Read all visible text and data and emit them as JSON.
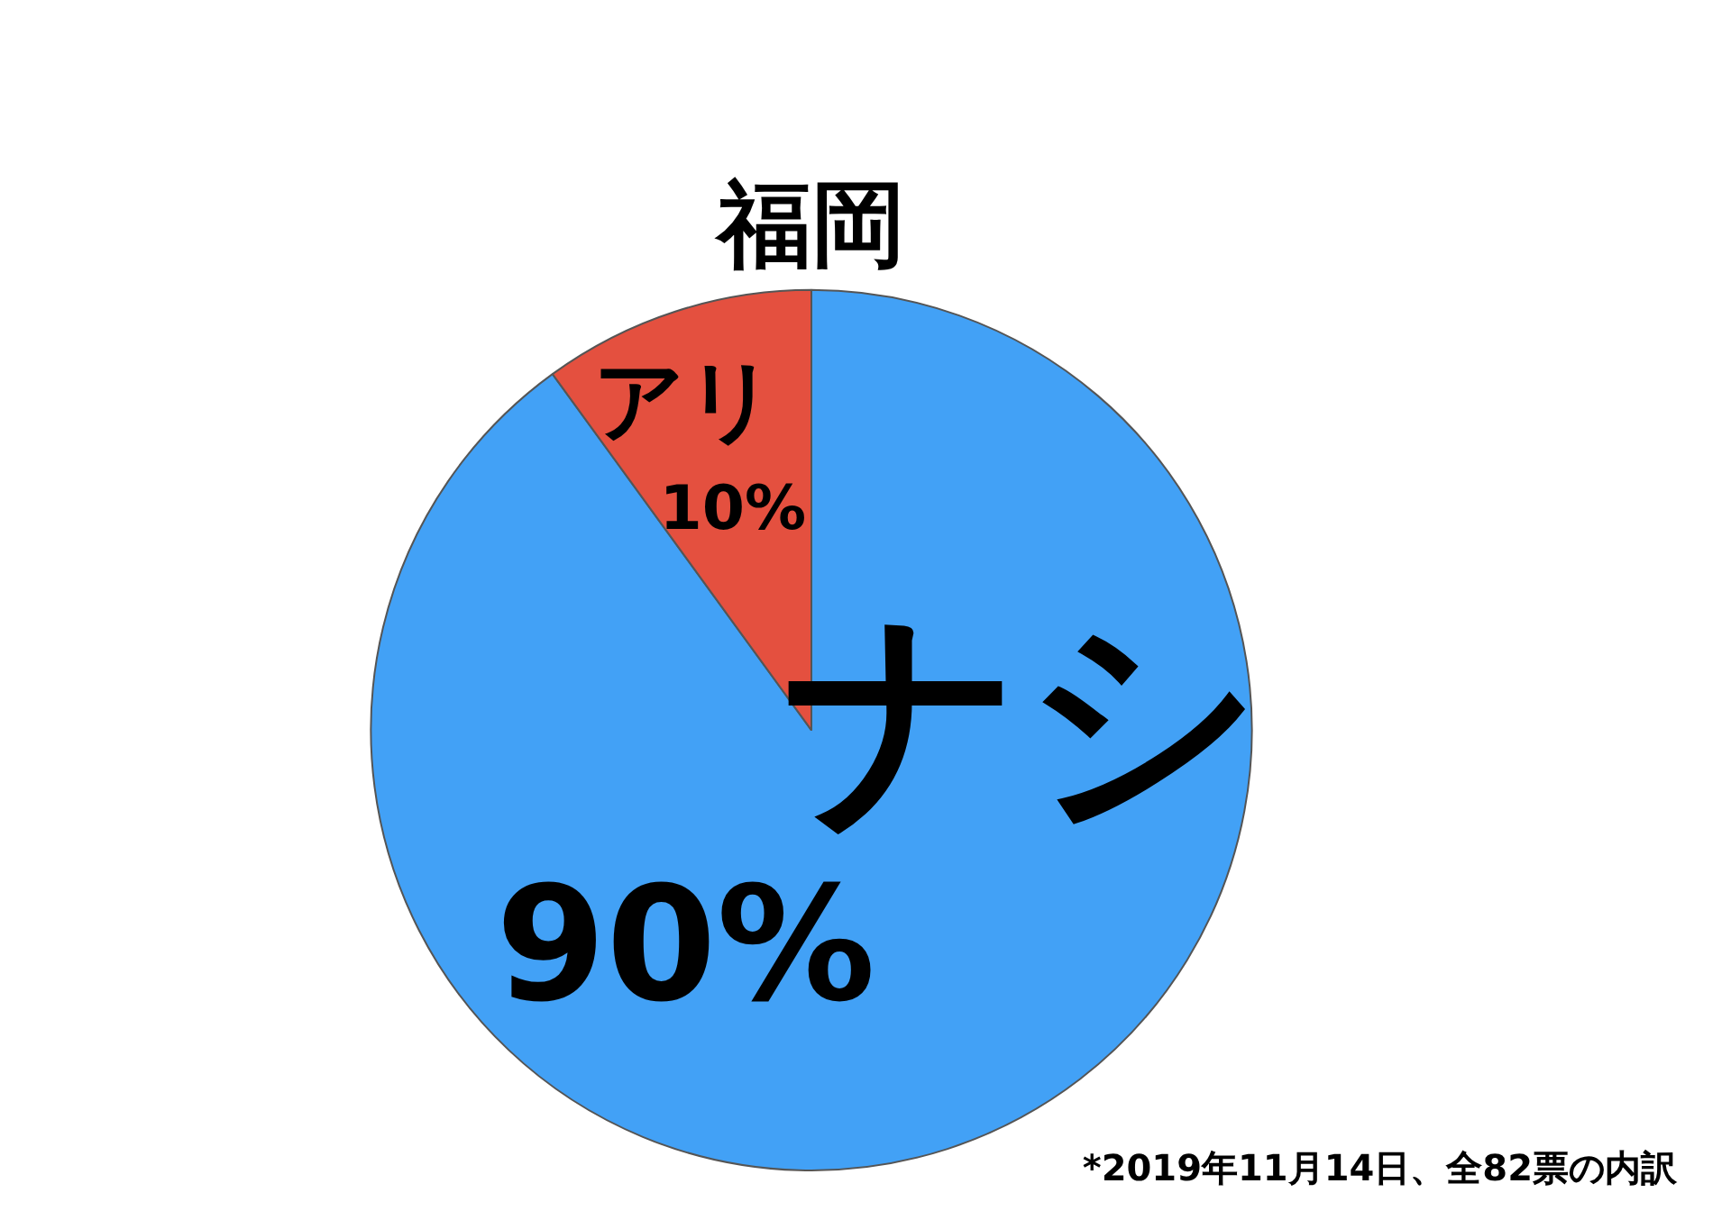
{
  "chart_data": {
    "type": "pie",
    "title": "福岡",
    "categories": [
      "ナシ",
      "アリ"
    ],
    "values": [
      90,
      10
    ],
    "colors": [
      "#42a1f6",
      "#e4503f"
    ],
    "value_labels": [
      "90%",
      "10%"
    ],
    "legend": false,
    "annotations": [
      "*2019年11月14日、全82票の内訳"
    ]
  }
}
